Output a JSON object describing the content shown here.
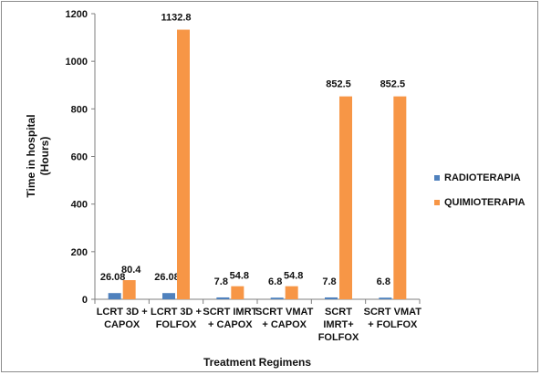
{
  "chart_data": {
    "type": "bar",
    "categories": [
      [
        "LCRT 3D +",
        "CAPOX"
      ],
      [
        "LCRT 3D +",
        "FOLFOX"
      ],
      [
        "SCRT IMRT",
        "+ CAPOX"
      ],
      [
        "SCRT VMAT",
        "+ CAPOX"
      ],
      [
        "SCRT",
        "IMRT+",
        "FOLFOX"
      ],
      [
        "SCRT VMAT",
        "+ FOLFOX"
      ]
    ],
    "series": [
      {
        "name": "RADIOTERAPIA",
        "color": "#4f81bd",
        "values": [
          26.08,
          26.08,
          7.8,
          6.8,
          7.8,
          6.8
        ],
        "labels": [
          "26.08",
          "26.08",
          "7.8",
          "6.8",
          "7.8",
          "6.8"
        ]
      },
      {
        "name": "QUIMIOTERAPIA",
        "color": "#f79646",
        "values": [
          80.4,
          1132.8,
          54.8,
          54.8,
          852.5,
          852.5
        ],
        "labels": [
          "80.4",
          "1132.8",
          "54.8",
          "54.8",
          "852.5",
          "852.5"
        ]
      }
    ],
    "yticks": [
      "0",
      "200",
      "400",
      "600",
      "800",
      "1000",
      "1200"
    ],
    "ylim": [
      0,
      1200
    ],
    "ylabel": [
      "Time in hospital",
      "(Hours)"
    ],
    "xlabel": "Treatment Regimens",
    "grid": false,
    "legend": "right"
  }
}
